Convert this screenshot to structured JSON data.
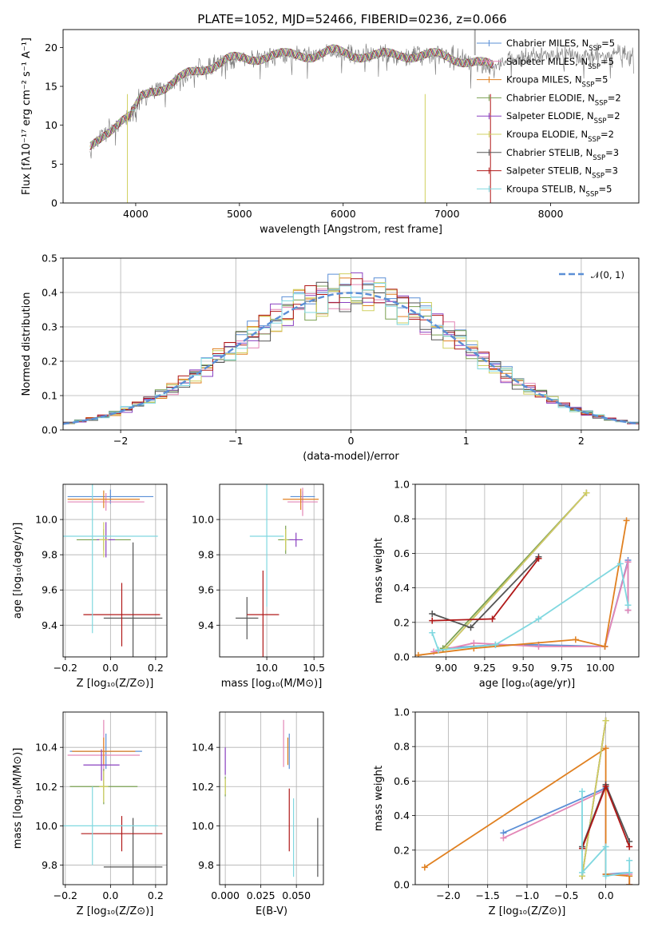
{
  "colors": [
    "#5b8fd6",
    "#e386b6",
    "#e08020",
    "#7aa050",
    "#8a40c0",
    "#d0d060",
    "#555555",
    "#b01818",
    "#80d8e0"
  ],
  "figure": {
    "title": "PLATE=1052, MJD=52466, FIBERID=0236, z=0.066"
  },
  "chart_data": [
    {
      "id": "spectrum",
      "type": "line",
      "xlabel": "wavelength [Angstrom, rest frame]",
      "ylabel": "Flux [fλ10⁻¹⁷ erg cm⁻² s⁻¹ A⁻¹]",
      "xlim": [
        3300,
        8850
      ],
      "ylim": [
        0,
        22.3
      ],
      "xticks": [
        4000,
        5000,
        6000,
        7000,
        8000
      ],
      "yticks": [
        0,
        5,
        10,
        15,
        20
      ],
      "grid": false,
      "legend_position": "right",
      "legend": [
        "Chabrier MILES, N_SSP=5",
        "Salpeter MILES, N_SSP=5",
        "Kroupa MILES, N_SSP=5",
        "Chabrier ELODIE, N_SSP=2",
        "Salpeter ELODIE, N_SSP=2",
        "Kroupa ELODIE, N_SSP=2",
        "Chabrier STELIB, N_SSP=3",
        "Salpeter STELIB, N_SSP=3",
        "Kroupa STELIB, N_SSP=5"
      ],
      "continuum": {
        "wavelength": [
          3560,
          3700,
          3850,
          3950,
          4050,
          4150,
          4300,
          4500,
          4700,
          4900,
          5100,
          5300,
          5500,
          5700,
          5900,
          6100,
          6300,
          6500,
          6700,
          6900,
          7100,
          7300,
          7450,
          7600,
          7800,
          8000,
          8200,
          8500,
          8800
        ],
        "flux": [
          7.0,
          9.0,
          10.5,
          11.0,
          13.5,
          14.5,
          15.0,
          16.5,
          17.5,
          18.5,
          18.5,
          19.0,
          19.0,
          19.0,
          19.5,
          19.0,
          19.0,
          19.0,
          19.0,
          19.0,
          18.5,
          18.0,
          17.5,
          18.5,
          19.0,
          19.0,
          19.0,
          19.0,
          19.0
        ]
      },
      "noise_amplitude": 1.4,
      "model_start": 3560,
      "model_end": 7450
    },
    {
      "id": "residuals",
      "type": "histogram",
      "xlabel": "(data-model)/error",
      "ylabel": "Normed distribution",
      "xlim": [
        -2.5,
        2.5
      ],
      "ylim": [
        0,
        0.5
      ],
      "xticks": [
        -2,
        -1,
        0,
        1,
        2
      ],
      "yticks": [
        0.0,
        0.1,
        0.2,
        0.3,
        0.4,
        0.5
      ],
      "bin_width": 0.1,
      "grid": true,
      "legend_position": "top-right",
      "legend": [
        "𝒩(0, 1)"
      ]
    },
    {
      "id": "age_vs_Z",
      "type": "errorbar",
      "xlabel": "Z [log₁₀(Z/Z⊙)]",
      "ylabel": "age  [log₁₀(age/yr)]",
      "xlim": [
        -0.21,
        0.25
      ],
      "ylim": [
        9.22,
        10.2
      ],
      "xticks": [
        -0.2,
        0.0,
        0.2
      ],
      "yticks": [
        9.4,
        9.6,
        9.8,
        10.0
      ],
      "grid": true,
      "points": [
        {
          "x": 0.0,
          "y": 10.13,
          "xerr": 0.19,
          "yerr": 0.04
        },
        {
          "x": -0.02,
          "y": 10.1,
          "xerr": 0.17,
          "yerr": 0.05
        },
        {
          "x": -0.03,
          "y": 10.115,
          "xerr": 0.16,
          "yerr": 0.05
        },
        {
          "x": -0.03,
          "y": 9.885,
          "xerr": 0.12,
          "yerr": 0.06
        },
        {
          "x": -0.02,
          "y": 9.885,
          "xerr": 0.04,
          "yerr": 0.1
        },
        {
          "x": -0.03,
          "y": 9.885,
          "xerr": 0.02,
          "yerr": 0.1
        },
        {
          "x": 0.1,
          "y": 9.44,
          "xerr": 0.13,
          "yerr": 0.43
        },
        {
          "x": 0.05,
          "y": 9.46,
          "xerr": 0.17,
          "yerr": 0.18
        },
        {
          "x": -0.08,
          "y": 9.905,
          "xerr": 0.29,
          "yerr": 0.55
        }
      ]
    },
    {
      "id": "age_vs_mass",
      "type": "errorbar",
      "xlabel": "mass [log₁₀(M/M⊙)]",
      "ylabel": "",
      "xlim": [
        9.5,
        10.6
      ],
      "ylim": [
        9.22,
        10.2
      ],
      "xticks": [
        10.0,
        10.5
      ],
      "yticks": [
        9.4,
        9.6,
        9.8,
        10.0
      ],
      "grid": true,
      "points": [
        {
          "x": 10.38,
          "y": 10.13,
          "xerr": 0.13,
          "yerr": 0.03
        },
        {
          "x": 10.38,
          "y": 10.1,
          "xerr": 0.16,
          "yerr": 0.08
        },
        {
          "x": 10.36,
          "y": 10.115,
          "xerr": 0.19,
          "yerr": 0.06
        },
        {
          "x": 10.2,
          "y": 9.885,
          "xerr": 0.08,
          "yerr": 0.08
        },
        {
          "x": 10.31,
          "y": 9.885,
          "xerr": 0.07,
          "yerr": 0.04
        },
        {
          "x": 10.2,
          "y": 9.885,
          "xerr": 0.02,
          "yerr": 0.06
        },
        {
          "x": 9.79,
          "y": 9.44,
          "xerr": 0.12,
          "yerr": 0.12
        },
        {
          "x": 9.96,
          "y": 9.46,
          "xerr": 0.17,
          "yerr": 0.25
        },
        {
          "x": 10.0,
          "y": 9.905,
          "xerr": 0.18,
          "yerr": 0.4
        }
      ]
    },
    {
      "id": "weight_vs_age",
      "type": "line",
      "xlabel": "age  [log₁₀(age/yr)]",
      "ylabel": "mass weight",
      "xlim": [
        8.8,
        10.25
      ],
      "ylim": [
        0,
        1
      ],
      "xticks": [
        9.0,
        9.25,
        9.5,
        9.75,
        10.0
      ],
      "yticks": [
        0.0,
        0.2,
        0.4,
        0.6,
        0.8,
        1.0
      ],
      "grid": true,
      "series": [
        {
          "x": [
            9.0,
            9.32,
            9.6,
            10.03,
            10.18,
            10.18
          ],
          "y": [
            0.05,
            0.07,
            0.07,
            0.06,
            0.56,
            0.27
          ]
        },
        {
          "x": [
            8.92,
            9.18,
            9.6,
            10.03,
            10.18,
            10.18
          ],
          "y": [
            0.03,
            0.08,
            0.06,
            0.06,
            0.55,
            0.27
          ]
        },
        {
          "x": [
            8.82,
            9.18,
            9.84,
            10.03,
            10.17
          ],
          "y": [
            0.01,
            0.05,
            0.1,
            0.06,
            0.79
          ]
        },
        {
          "x": [
            8.98,
            9.91
          ],
          "y": [
            0.05,
            0.95
          ]
        },
        {
          "x": [
            9.0,
            9.91
          ],
          "y": [
            0.05,
            0.95
          ]
        },
        {
          "x": [
            9.0,
            9.91
          ],
          "y": [
            0.05,
            0.95
          ]
        },
        {
          "x": [
            8.91,
            9.16,
            9.6
          ],
          "y": [
            0.25,
            0.17,
            0.58
          ]
        },
        {
          "x": [
            8.91,
            9.3,
            9.6
          ],
          "y": [
            0.21,
            0.22,
            0.57
          ]
        },
        {
          "x": [
            8.91,
            8.95,
            9.32,
            9.6,
            10.13,
            10.18
          ],
          "y": [
            0.14,
            0.04,
            0.07,
            0.22,
            0.54,
            0.3
          ]
        }
      ]
    },
    {
      "id": "mass_vs_Z",
      "type": "errorbar",
      "xlabel": "Z [log₁₀(Z/Z⊙)]",
      "ylabel": "mass [log₁₀(M/M⊙)]",
      "xlim": [
        -0.21,
        0.25
      ],
      "ylim": [
        9.7,
        10.58
      ],
      "xticks": [
        -0.2,
        0.0,
        0.2
      ],
      "yticks": [
        9.8,
        10.0,
        10.2,
        10.4
      ],
      "grid": true,
      "points": [
        {
          "x": -0.02,
          "y": 10.38,
          "xerr": 0.16,
          "yerr": 0.09
        },
        {
          "x": -0.03,
          "y": 10.36,
          "xerr": 0.16,
          "yerr": 0.18
        },
        {
          "x": -0.03,
          "y": 10.38,
          "xerr": 0.14,
          "yerr": 0.07
        },
        {
          "x": -0.03,
          "y": 10.2,
          "xerr": 0.15,
          "yerr": 0.09
        },
        {
          "x": -0.04,
          "y": 10.31,
          "xerr": 0.08,
          "yerr": 0.08
        },
        {
          "x": -0.03,
          "y": 10.2,
          "xerr": 0.02,
          "yerr": 0.08
        },
        {
          "x": 0.1,
          "y": 9.79,
          "xerr": 0.13,
          "yerr": 0.25
        },
        {
          "x": 0.05,
          "y": 9.96,
          "xerr": 0.18,
          "yerr": 0.09
        },
        {
          "x": -0.08,
          "y": 10.0,
          "xerr": 0.29,
          "yerr": 0.2
        }
      ]
    },
    {
      "id": "mass_vs_ebv",
      "type": "errorbar",
      "xlabel": "E(B-V)",
      "ylabel": "",
      "xlim": [
        -0.004,
        0.069
      ],
      "ylim": [
        9.7,
        10.58
      ],
      "xticks": [
        0.0,
        0.025,
        0.05
      ],
      "xtick_labels": [
        "0.000",
        "0.025",
        "0.050"
      ],
      "yticks": [
        9.8,
        10.0,
        10.2,
        10.4
      ],
      "grid": true,
      "points": [
        {
          "x": 0.045,
          "y": 10.38,
          "xerr": 0.0,
          "yerr": 0.09
        },
        {
          "x": 0.041,
          "y": 10.42,
          "xerr": 0.0,
          "yerr": 0.12
        },
        {
          "x": 0.044,
          "y": 10.38,
          "xerr": 0.0,
          "yerr": 0.07
        },
        {
          "x": 0.0,
          "y": 10.2,
          "xerr": 0.0,
          "yerr": 0.05
        },
        {
          "x": 0.0,
          "y": 10.33,
          "xerr": 0.0,
          "yerr": 0.07
        },
        {
          "x": 0.0,
          "y": 10.2,
          "xerr": 0.0,
          "yerr": 0.04
        },
        {
          "x": 0.065,
          "y": 9.89,
          "xerr": 0.0,
          "yerr": 0.15
        },
        {
          "x": 0.045,
          "y": 10.03,
          "xerr": 0.0,
          "yerr": 0.16
        },
        {
          "x": 0.048,
          "y": 9.94,
          "xerr": 0.0,
          "yerr": 0.2
        }
      ]
    },
    {
      "id": "weight_vs_Z",
      "type": "line",
      "xlabel": "Z [log₁₀(Z/Z⊙)]",
      "ylabel": "mass weight",
      "xlim": [
        -2.42,
        0.42
      ],
      "ylim": [
        0,
        1
      ],
      "xticks": [
        -2.0,
        -1.5,
        -1.0,
        -0.5,
        0.0
      ],
      "yticks": [
        0.0,
        0.2,
        0.4,
        0.6,
        0.8,
        1.0
      ],
      "grid": true,
      "series": [
        {
          "x": [
            -1.3,
            0.0,
            0.0,
            0.3,
            0.3
          ],
          "y": [
            0.3,
            0.56,
            0.06,
            0.07,
            0.0
          ]
        },
        {
          "x": [
            -1.3,
            0.0,
            0.0,
            0.3,
            0.3
          ],
          "y": [
            0.27,
            0.55,
            0.06,
            0.06,
            0.0
          ]
        },
        {
          "x": [
            -2.3,
            0.0,
            0.0,
            0.3,
            0.3
          ],
          "y": [
            0.1,
            0.79,
            0.06,
            0.05,
            0.0
          ]
        },
        {
          "x": [
            -0.3,
            0.0
          ],
          "y": [
            0.05,
            0.95
          ]
        },
        {
          "x": [
            -0.3,
            0.0
          ],
          "y": [
            0.05,
            0.95
          ]
        },
        {
          "x": [
            -0.3,
            0.0
          ],
          "y": [
            0.05,
            0.95
          ]
        },
        {
          "x": [
            -0.3,
            0.0,
            0.3
          ],
          "y": [
            0.22,
            0.58,
            0.25
          ]
        },
        {
          "x": [
            -0.3,
            0.0,
            0.3
          ],
          "y": [
            0.21,
            0.57,
            0.22
          ]
        },
        {
          "x": [
            -0.3,
            -0.3,
            0.0,
            0.0,
            0.3,
            0.3
          ],
          "y": [
            0.54,
            0.07,
            0.22,
            0.05,
            0.07,
            0.14
          ]
        }
      ]
    }
  ]
}
